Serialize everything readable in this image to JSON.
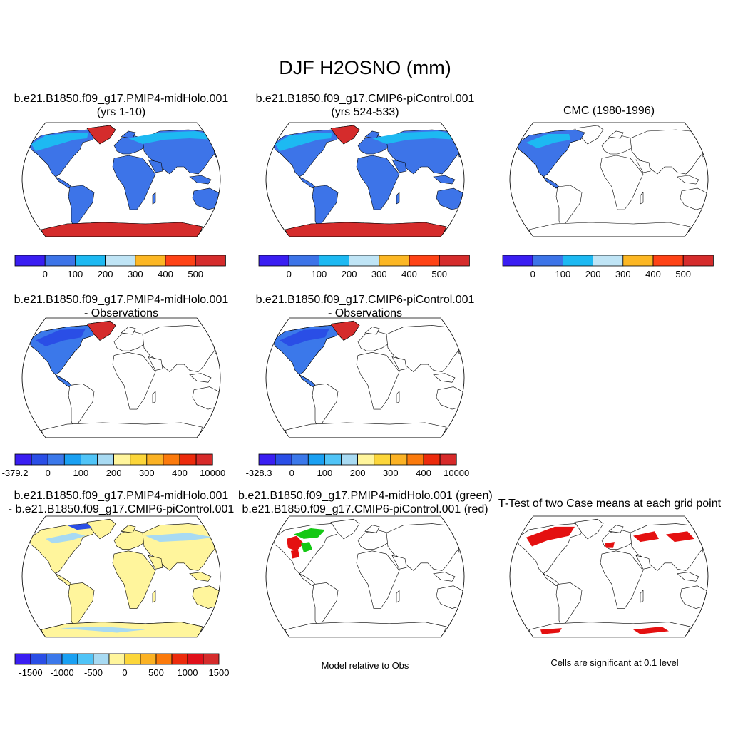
{
  "title": "DJF H2OSNO (mm)",
  "colors": {
    "seq7": [
      "#3a1ef2",
      "#3d74e8",
      "#1db9f2",
      "#bfe4f5",
      "#fcb724",
      "#fe4316",
      "#d52c2c"
    ],
    "diff12": [
      "#3a1ef2",
      "#2a4ee6",
      "#3b78ea",
      "#1aa0f2",
      "#50c4f7",
      "#a8daf2",
      "#fff59c",
      "#fcd63a",
      "#fbb224",
      "#fb7a0c",
      "#ec2b0c",
      "#d72a2a"
    ],
    "diff13": [
      "#3a1ef2",
      "#2a4ee6",
      "#3b78ea",
      "#1aa0f2",
      "#50c4f7",
      "#a8daf2",
      "#fff59c",
      "#fcd63a",
      "#fbb224",
      "#fb7a0c",
      "#ec2b0c",
      "#e0101a",
      "#d52c2c"
    ],
    "land": "#3d74e8",
    "cold": "#1db9f2",
    "ice": "#d52c2c",
    "diffLand": "#fff59c",
    "diffCold": "#a8daf2",
    "green": "#14c814",
    "red": "#e41010"
  },
  "panels": [
    {
      "id": "p1",
      "title1": "b.e21.B1850.f09_g17.PMIP4-midHolo.001",
      "title2": "(yrs 1-10)",
      "labels": [
        "0",
        "100",
        "200",
        "300",
        "400",
        "500"
      ]
    },
    {
      "id": "p2",
      "title1": "b.e21.B1850.f09_g17.CMIP6-piControl.001",
      "title2": "(yrs 524-533)",
      "labels": [
        "0",
        "100",
        "200",
        "300",
        "400",
        "500"
      ]
    },
    {
      "id": "p3",
      "title1": "CMC (1980-1996)",
      "title2": "",
      "labels": [
        "0",
        "100",
        "200",
        "300",
        "400",
        "500"
      ]
    },
    {
      "id": "p4",
      "title1": "b.e21.B1850.f09_g17.PMIP4-midHolo.001",
      "title2": "- Observations",
      "labels": [
        "-379.2",
        "0",
        "100",
        "200",
        "300",
        "400",
        "10000"
      ]
    },
    {
      "id": "p5",
      "title1": "b.e21.B1850.f09_g17.CMIP6-piControl.001",
      "title2": "- Observations",
      "labels": [
        "-328.3",
        "0",
        "100",
        "200",
        "300",
        "400",
        "10000"
      ]
    },
    {
      "id": "p6",
      "title1": "b.e21.B1850.f09_g17.PMIP4-midHolo.001",
      "title2": "- b.e21.B1850.f09_g17.CMIP6-piControl.001",
      "labels": [
        "-1500",
        "-1000",
        "-500",
        "0",
        "500",
        "1000",
        "1500"
      ]
    },
    {
      "id": "p7",
      "title1": "b.e21.B1850.f09_g17.PMIP4-midHolo.001 (green)",
      "title2": "b.e21.B1850.f09_g17.CMIP6-piControl.001 (red)",
      "caption": "Model relative to Obs"
    },
    {
      "id": "p8",
      "title1": "T-Test of two Case means at each grid point",
      "title2": "",
      "caption": "Cells are significant at 0.1 level"
    }
  ]
}
